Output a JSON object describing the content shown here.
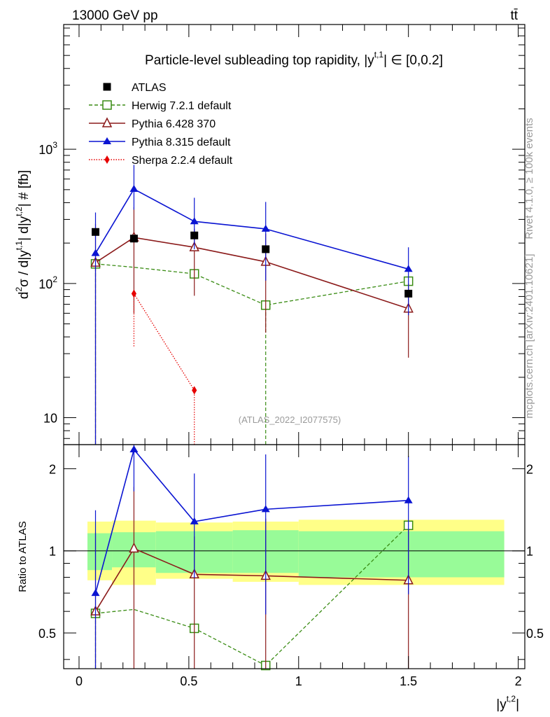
{
  "header": {
    "energy": "13000 GeV pp",
    "process": "tt̄"
  },
  "side_labels": {
    "rivet": "Rivet 4.1.0, ≥ 100k events",
    "mcplots": "mcplots.cern.ch [arXiv:2401.10621]"
  },
  "chart_data": {
    "type": "line",
    "title": "Particle-level subleading top rapidity, |y^{t,1}| ∈ [0,0.2]",
    "title_parts": {
      "prefix": "Particle-level subleading top rapidity, |y",
      "sup": "t,1",
      "suffix": "| ∈ [0,0.2]"
    },
    "ylabel": "d²σ / d|y^{t,1}| d|y^{t,2}| # [fb]",
    "ylabel_parts": {
      "a": "d",
      "a_sup": "2",
      "b": "σ / d|y",
      "b_sup": "t,1",
      "c": "| d|y",
      "c_sup": "t,2",
      "d": "| # [fb]"
    },
    "xlabel": "|y^{t,2}|",
    "xlabel_parts": {
      "base": "|y",
      "sup": "t,2",
      "end": "|"
    },
    "ratio_ylabel": "Ratio to ATLAS",
    "watermark": "(ATLAS_2022_I2077575)",
    "xlim": [
      -0.07,
      2.03
    ],
    "ylim": [
      6.3,
      8500
    ],
    "ratio_ylim": [
      0.37,
      2.45
    ],
    "x_ticks": [
      "0",
      "0.5",
      "1",
      "1.5",
      "2"
    ],
    "y_ticks": [
      "10",
      "10²",
      "10³"
    ],
    "y_tick_parts": [
      {
        "base": "10",
        "exp": ""
      },
      {
        "base": "10",
        "exp": "2"
      },
      {
        "base": "10",
        "exp": "3"
      }
    ],
    "ratio_ticks": [
      "0.5",
      "1",
      "2"
    ],
    "bins": [
      [
        0,
        0.15
      ],
      [
        0.15,
        0.35
      ],
      [
        0.35,
        0.7
      ],
      [
        0.7,
        1.0
      ],
      [
        1.0,
        2.0
      ]
    ],
    "x": [
      0.075,
      0.25,
      0.525,
      0.85,
      1.5
    ],
    "data": {
      "name": "ATLAS",
      "values": [
        242,
        216,
        228,
        180,
        84
      ],
      "band_inner": [
        [
          0.85,
          1.16
        ],
        [
          0.87,
          1.17
        ],
        [
          0.83,
          1.18
        ],
        [
          0.83,
          1.19
        ],
        [
          0.8,
          1.18
        ]
      ],
      "band_outer": [
        [
          0.78,
          1.28
        ],
        [
          0.75,
          1.29
        ],
        [
          0.79,
          1.27
        ],
        [
          0.77,
          1.28
        ],
        [
          0.75,
          1.3
        ]
      ]
    },
    "series": [
      {
        "name": "Herwig 7.2.1 default",
        "color": "#3a8c14",
        "marker": "open-square",
        "dash": "dashed",
        "y": [
          140,
          132,
          118,
          69,
          104
        ],
        "yerr_low": [
          140,
          0,
          0,
          69,
          0
        ],
        "yerr_high": [
          0,
          0,
          0,
          0,
          0
        ],
        "show_marker": [
          true,
          false,
          true,
          true,
          true
        ],
        "ratio": [
          0.59,
          0.61,
          0.52,
          0.38,
          1.24
        ]
      },
      {
        "name": "Pythia 6.428 370",
        "color": "#8b1a1a",
        "marker": "open-triangle",
        "dash": "solid",
        "y": [
          143,
          220,
          186,
          145,
          65
        ],
        "yerr_low": [
          143,
          160,
          105,
          102,
          37
        ],
        "yerr_high": [
          135,
          150,
          70,
          90,
          35
        ],
        "show_marker": [
          true,
          true,
          true,
          true,
          true
        ],
        "ratio": [
          0.6,
          1.02,
          0.82,
          0.81,
          0.78
        ]
      },
      {
        "name": "Pythia 8.315 default",
        "color": "#0a14d2",
        "marker": "filled-triangle",
        "dash": "solid",
        "y": [
          168,
          505,
          290,
          255,
          128
        ],
        "yerr_low": [
          168,
          150,
          110,
          150,
          70
        ],
        "yerr_high": [
          170,
          260,
          145,
          150,
          58
        ],
        "show_marker": [
          true,
          true,
          true,
          true,
          true
        ],
        "ratio": [
          0.7,
          2.35,
          1.28,
          1.42,
          1.53
        ]
      },
      {
        "name": "Sherpa 2.2.4 default",
        "color": "#e60000",
        "marker": "filled-diamond",
        "dash": "dotted",
        "y": [
          null,
          84,
          16,
          null,
          null
        ],
        "yerr_low": [
          0,
          50,
          16,
          0,
          0
        ],
        "yerr_high": [
          0,
          0,
          0,
          0,
          0
        ],
        "show_marker": [
          false,
          true,
          true,
          false,
          false
        ],
        "ratio": [
          null,
          null,
          null,
          null,
          null
        ]
      }
    ]
  }
}
